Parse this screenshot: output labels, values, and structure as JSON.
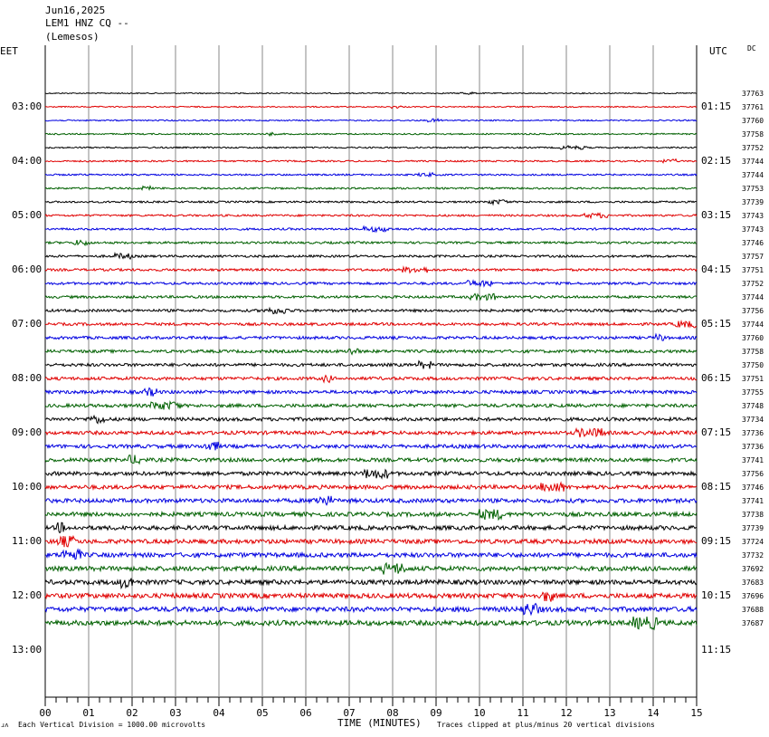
{
  "header": {
    "date": "Jun16,2025",
    "station": "LEM1 HNZ CQ --",
    "location": "(Lemesos)"
  },
  "tz_left": "EET",
  "tz_right": "UTC",
  "dc_label": "DC",
  "footer": {
    "mark": "ɹʌ",
    "scale": "Each Vertical Division = 1000.00 microvolts",
    "xlabel": "TIME (MINUTES)",
    "clip": "Traces clipped at plus/minus 20 vertical divisions"
  },
  "colors": {
    "trace_cycle": [
      "#000000",
      "#e00000",
      "#0000e0",
      "#006000"
    ],
    "grid": "#888888"
  },
  "chart_data": {
    "type": "line",
    "title": "Jun16,2025",
    "xlabel": "TIME (MINUTES)",
    "ylabel": "",
    "xlim": [
      0,
      15
    ],
    "x_ticks": [
      "00",
      "01",
      "02",
      "03",
      "04",
      "05",
      "06",
      "07",
      "08",
      "09",
      "10",
      "11",
      "12",
      "13",
      "14",
      "15"
    ],
    "left_time_labels": [
      "03:00",
      "04:00",
      "05:00",
      "06:00",
      "07:00",
      "08:00",
      "09:00",
      "10:00",
      "11:00",
      "12:00",
      "13:00"
    ],
    "right_time_labels": [
      "01:15",
      "02:15",
      "03:15",
      "04:15",
      "05:15",
      "06:15",
      "07:15",
      "08:15",
      "09:15",
      "10:15",
      "11:15"
    ],
    "traces_per_hour": 4,
    "first_trace_hour_offset": -0.25,
    "trace_counts": [
      37763,
      37761,
      37760,
      37758,
      37752,
      37744,
      37744,
      37753,
      37739,
      37743,
      37743,
      37746,
      37757,
      37751,
      37752,
      37744,
      37756,
      37744,
      37760,
      37758,
      37750,
      37751,
      37755,
      37748,
      37734,
      37736,
      37736,
      37741,
      37756,
      37746,
      37741,
      37738,
      37739,
      37724,
      37732,
      37692,
      37683,
      37696,
      37688,
      37687
    ]
  }
}
